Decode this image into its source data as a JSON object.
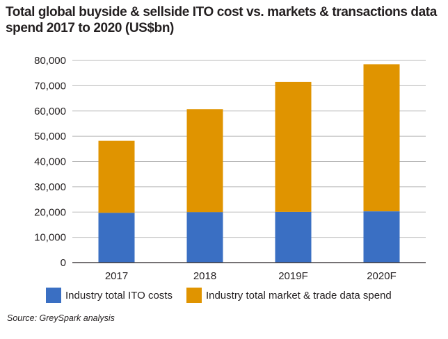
{
  "title_line1": "Total global buyside & sellside ITO cost vs. markets & transactions data",
  "title_line2": "spend 2017 to 2020 (US$bn)",
  "source": "Source: GreySpark analysis",
  "chart_data": {
    "type": "bar",
    "stacked": true,
    "categories": [
      "2017",
      "2018",
      "2019F",
      "2020F"
    ],
    "series": [
      {
        "name": "Industry total ITO costs",
        "color": "#3a6fc3",
        "values": [
          19700,
          20000,
          20100,
          20300
        ]
      },
      {
        "name": "Industry total market & trade data spend",
        "color": "#e09400",
        "values": [
          28500,
          40700,
          51400,
          58200
        ]
      }
    ],
    "ylim": [
      0,
      80000
    ],
    "yticks": [
      "0",
      "10,000",
      "20,000",
      "30,000",
      "40,000",
      "50,000",
      "60,000",
      "70,000",
      "80,000"
    ],
    "grid": true,
    "legend": "bottom"
  }
}
